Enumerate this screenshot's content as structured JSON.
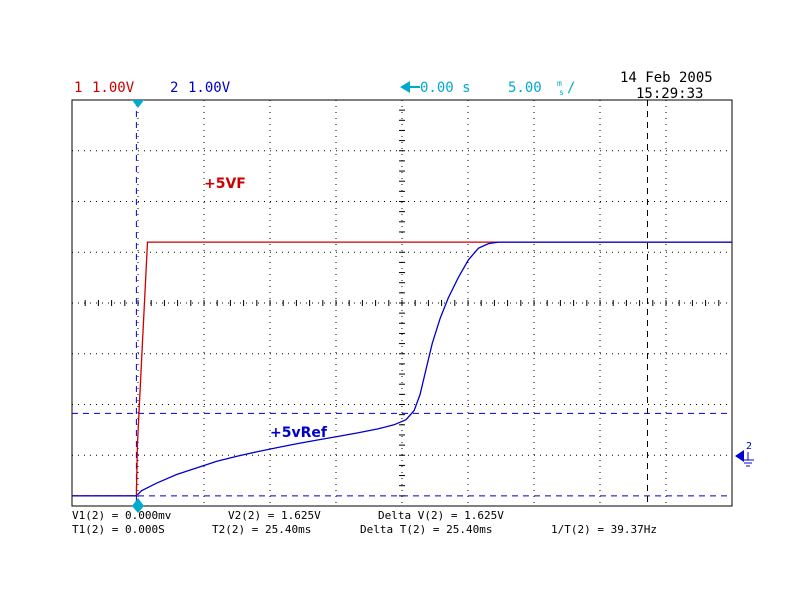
{
  "header": {
    "ch1_num": "1",
    "ch1_scale": "1.00V",
    "ch2_num": "2",
    "ch2_scale": "1.00V",
    "delay": "0.00 s",
    "timebase": "5.00",
    "timebase_unit_top": "m",
    "timebase_unit_bottom": "s",
    "trigger_slope": "/",
    "date": "14 Feb 2005",
    "time": "15:29:33"
  },
  "markers": {
    "ch2_ground": "2",
    "ch2_ground_num": "2"
  },
  "readout": {
    "row1": [
      "V1(2) = 0.000mv",
      "V2(2) = 1.625V",
      "Delta V(2) = 1.625V"
    ],
    "row2": [
      "T1(2) = 0.000S",
      "T2(2) = 25.40ms",
      "Delta T(2) = 25.40ms",
      "1/T(2) = 39.37Hz"
    ]
  },
  "colors": {
    "ch1": "#cc0000",
    "ch2": "#0000cc",
    "accent": "#00aacc",
    "grid": "#000000"
  },
  "chart_data": {
    "type": "line",
    "xlim": [
      -3.2,
      29.6
    ],
    "ylim": [
      -0.2,
      7.8
    ],
    "x_unit": "ms",
    "y_unit": "V",
    "grid": true,
    "cursors": {
      "t1": 0.0,
      "t2": 25.4,
      "v1": 0.0,
      "v2": 1.625
    },
    "series": [
      {
        "name": "+5VF",
        "channel": 1,
        "points": [
          [
            -3.2,
            0.0
          ],
          [
            0.0,
            0.0
          ],
          [
            0.05,
            1.0
          ],
          [
            0.3,
            3.0
          ],
          [
            0.55,
            5.0
          ],
          [
            0.65,
            5.0
          ],
          [
            29.6,
            5.0
          ]
        ]
      },
      {
        "name": "+5vRef",
        "channel": 2,
        "points": [
          [
            -3.2,
            0.0
          ],
          [
            0.0,
            0.0
          ],
          [
            0.25,
            0.1
          ],
          [
            1.0,
            0.25
          ],
          [
            2.0,
            0.42
          ],
          [
            3.0,
            0.55
          ],
          [
            4.0,
            0.68
          ],
          [
            5.0,
            0.78
          ],
          [
            6.0,
            0.87
          ],
          [
            7.0,
            0.95
          ],
          [
            8.0,
            1.03
          ],
          [
            9.0,
            1.1
          ],
          [
            10.0,
            1.17
          ],
          [
            11.0,
            1.24
          ],
          [
            12.0,
            1.32
          ],
          [
            12.8,
            1.4
          ],
          [
            13.4,
            1.5
          ],
          [
            13.8,
            1.68
          ],
          [
            14.1,
            2.0
          ],
          [
            14.4,
            2.5
          ],
          [
            14.7,
            3.0
          ],
          [
            15.1,
            3.5
          ],
          [
            15.5,
            3.9
          ],
          [
            16.0,
            4.3
          ],
          [
            16.5,
            4.65
          ],
          [
            17.0,
            4.88
          ],
          [
            17.5,
            4.97
          ],
          [
            18.0,
            5.0
          ],
          [
            29.6,
            5.0
          ]
        ]
      }
    ]
  }
}
